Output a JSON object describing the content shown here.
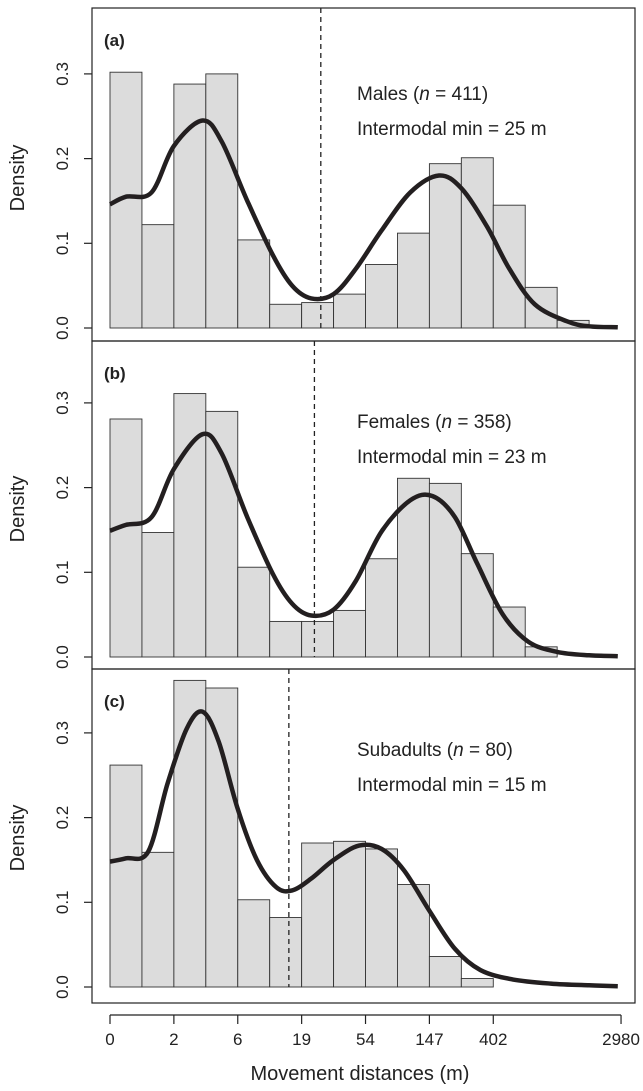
{
  "figure": {
    "xlabel": "Movement distances (m)",
    "x_tick_labels": [
      "0",
      "2",
      "6",
      "19",
      "54",
      "147",
      "402",
      "2980"
    ],
    "colors": {
      "bar_fill": "#dcdcdc",
      "bar_stroke": "#333333",
      "curve": "#231f20",
      "frame": "#222222"
    }
  },
  "chart_data": [
    {
      "type": "bar",
      "panel_label": "(a)",
      "group": "Males",
      "n_label": "n",
      "n_value": "411",
      "annotation_line1": "Males (n = 411)",
      "annotation_line2": "Intermodal min = 25 m",
      "ylabel": "Density",
      "y_ticks": [
        0.0,
        0.1,
        0.2,
        0.3
      ],
      "y_tick_labels": [
        "0.0",
        "0.1",
        "0.2",
        "0.3"
      ],
      "ylim": [
        0,
        0.34
      ],
      "bin_count": 16,
      "values": [
        0.302,
        0.122,
        0.288,
        0.3,
        0.104,
        0.028,
        0.03,
        0.04,
        0.075,
        0.112,
        0.194,
        0.201,
        0.145,
        0.048,
        0.009,
        0.0
      ],
      "intermodal_min_line_bin": 6.6,
      "density_curve": [
        [
          0,
          0.146
        ],
        [
          0.5,
          0.155
        ],
        [
          1.3,
          0.16
        ],
        [
          2,
          0.215
        ],
        [
          2.9,
          0.245
        ],
        [
          3.5,
          0.22
        ],
        [
          4.3,
          0.15
        ],
        [
          5.1,
          0.086
        ],
        [
          5.7,
          0.05
        ],
        [
          6.3,
          0.035
        ],
        [
          7,
          0.04
        ],
        [
          7.7,
          0.07
        ],
        [
          8.5,
          0.115
        ],
        [
          9.4,
          0.16
        ],
        [
          10.3,
          0.18
        ],
        [
          11,
          0.165
        ],
        [
          11.8,
          0.12
        ],
        [
          12.5,
          0.07
        ],
        [
          13.3,
          0.028
        ],
        [
          14.3,
          0.008
        ],
        [
          15,
          0.002
        ],
        [
          15.9,
          0.001
        ]
      ]
    },
    {
      "type": "bar",
      "panel_label": "(b)",
      "group": "Females",
      "n_label": "n",
      "n_value": "358",
      "annotation_line1": "Females (n = 358)",
      "annotation_line2": "Intermodal min = 23 m",
      "ylabel": "Density",
      "y_ticks": [
        0.0,
        0.1,
        0.2,
        0.3
      ],
      "y_tick_labels": [
        "0.0",
        "0.1",
        "0.2",
        "0.3"
      ],
      "ylim": [
        0,
        0.34
      ],
      "bin_count": 16,
      "values": [
        0.281,
        0.147,
        0.311,
        0.29,
        0.106,
        0.042,
        0.042,
        0.055,
        0.116,
        0.211,
        0.205,
        0.122,
        0.059,
        0.012,
        0.0,
        0.0
      ],
      "intermodal_min_line_bin": 6.4,
      "density_curve": [
        [
          0,
          0.149
        ],
        [
          0.5,
          0.156
        ],
        [
          1.3,
          0.165
        ],
        [
          2,
          0.222
        ],
        [
          2.9,
          0.263
        ],
        [
          3.5,
          0.24
        ],
        [
          4.3,
          0.165
        ],
        [
          5.1,
          0.098
        ],
        [
          5.7,
          0.063
        ],
        [
          6.3,
          0.049
        ],
        [
          7,
          0.056
        ],
        [
          7.7,
          0.09
        ],
        [
          8.5,
          0.148
        ],
        [
          9.4,
          0.185
        ],
        [
          10.1,
          0.19
        ],
        [
          10.8,
          0.165
        ],
        [
          11.5,
          0.11
        ],
        [
          12.3,
          0.05
        ],
        [
          13.1,
          0.018
        ],
        [
          14,
          0.006
        ],
        [
          15,
          0.002
        ],
        [
          15.9,
          0.001
        ]
      ]
    },
    {
      "type": "bar",
      "panel_label": "(c)",
      "group": "Subadults",
      "n_label": "n",
      "n_value": "80",
      "annotation_line1": "Subadults (n = 80)",
      "annotation_line2": "Intermodal min = 15 m",
      "ylabel": "Density",
      "y_ticks": [
        0.0,
        0.1,
        0.2,
        0.3
      ],
      "y_tick_labels": [
        "0.0",
        "0.1",
        "0.2",
        "0.3"
      ],
      "ylim": [
        0,
        0.36
      ],
      "bin_count": 16,
      "values": [
        0.262,
        0.159,
        0.362,
        0.353,
        0.103,
        0.082,
        0.17,
        0.172,
        0.163,
        0.121,
        0.036,
        0.01,
        0.0,
        0.0,
        0.0,
        0.0
      ],
      "intermodal_min_line_bin": 5.6,
      "density_curve": [
        [
          0,
          0.148
        ],
        [
          0.5,
          0.152
        ],
        [
          1.2,
          0.16
        ],
        [
          1.8,
          0.24
        ],
        [
          2.4,
          0.305
        ],
        [
          2.9,
          0.325
        ],
        [
          3.4,
          0.29
        ],
        [
          4,
          0.21
        ],
        [
          4.6,
          0.15
        ],
        [
          5.2,
          0.118
        ],
        [
          5.7,
          0.114
        ],
        [
          6.3,
          0.128
        ],
        [
          7,
          0.15
        ],
        [
          7.8,
          0.167
        ],
        [
          8.5,
          0.163
        ],
        [
          9.2,
          0.138
        ],
        [
          10,
          0.09
        ],
        [
          10.8,
          0.045
        ],
        [
          11.6,
          0.02
        ],
        [
          12.6,
          0.009
        ],
        [
          13.8,
          0.004
        ],
        [
          15,
          0.002
        ],
        [
          15.9,
          0.001
        ]
      ]
    }
  ]
}
